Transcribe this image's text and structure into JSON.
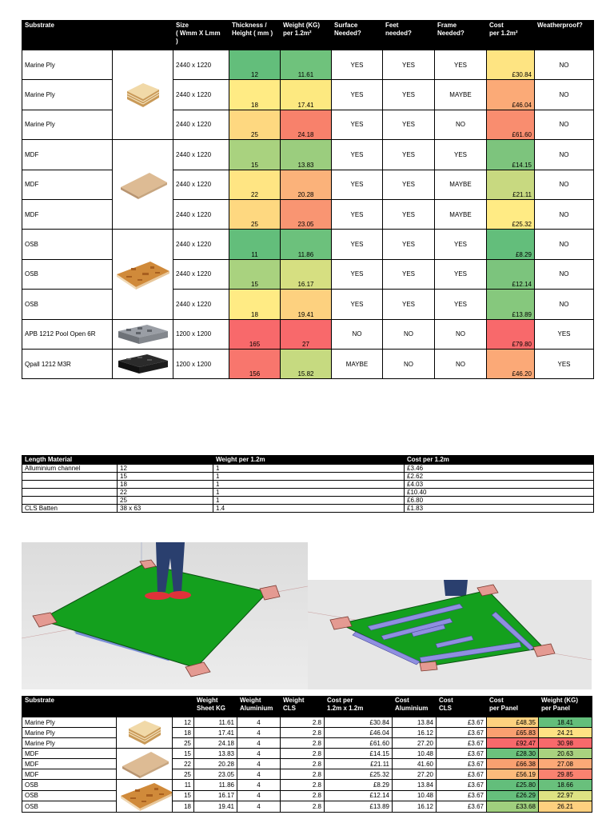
{
  "table1": {
    "header": [
      [
        "Substrate"
      ],
      [
        "Size",
        "( Wmm X Lmm",
        ")"
      ],
      [
        "Thickness /",
        "Height ( mm )"
      ],
      [
        "Weight (KG)",
        "per 1.2m²"
      ],
      [
        "Surface",
        "Needed?"
      ],
      [
        "Feet",
        "needed?"
      ],
      [
        "Frame",
        "Needed?"
      ],
      [
        "Cost",
        "per 1.2m²"
      ],
      [
        "Weatherproof?"
      ]
    ],
    "rows": [
      [
        "Marine Ply",
        "2440 x 1220",
        "12",
        "11.61",
        "YES",
        "YES",
        "YES",
        "£30.84",
        "NO"
      ],
      [
        "Marine Ply",
        "2440 x 1220",
        "18",
        "17.41",
        "YES",
        "YES",
        "MAYBE",
        "£46.04",
        "NO"
      ],
      [
        "Marine Ply",
        "2440 x 1220",
        "25",
        "24.18",
        "YES",
        "YES",
        "NO",
        "£61.60",
        "NO"
      ],
      [
        "MDF",
        "2440 x 1220",
        "15",
        "13.83",
        "YES",
        "YES",
        "YES",
        "£14.15",
        "NO"
      ],
      [
        "MDF",
        "2440 x 1220",
        "22",
        "20.28",
        "YES",
        "YES",
        "MAYBE",
        "£21.11",
        "NO"
      ],
      [
        "MDF",
        "2440 x 1220",
        "25",
        "23.05",
        "YES",
        "YES",
        "MAYBE",
        "£25.32",
        "NO"
      ],
      [
        "OSB",
        "2440 x 1220",
        "11",
        "11.86",
        "YES",
        "YES",
        "YES",
        "£8.29",
        "NO"
      ],
      [
        "OSB",
        "2440 x 1220",
        "15",
        "16.17",
        "YES",
        "YES",
        "YES",
        "£12.14",
        "NO"
      ],
      [
        "OSB",
        "2440 x 1220",
        "18",
        "19.41",
        "YES",
        "YES",
        "YES",
        "£13.89",
        "NO"
      ],
      [
        "APB 1212 Pool Open 6R",
        "1200 x 1200",
        "165",
        "27",
        "NO",
        "NO",
        "NO",
        "£79.80",
        "YES"
      ],
      [
        "Qpall 1212 M3R",
        "1200 x 1200",
        "156",
        "15.82",
        "MAYBE",
        "NO",
        "NO",
        "£46.20",
        "YES"
      ]
    ]
  },
  "table2": {
    "header": [
      [
        "Length Material"
      ],
      null,
      [
        "Weight per 1.2m"
      ],
      [
        "Cost per 1.2m"
      ]
    ],
    "rows": [
      [
        "Alluminium channel",
        "12",
        "1",
        "£3.46"
      ],
      [
        null,
        "15",
        "1",
        "£2.62"
      ],
      [
        null,
        "18",
        "1",
        "£4.03"
      ],
      [
        null,
        "22",
        "1",
        "£10.40"
      ],
      [
        null,
        "25",
        "1",
        "£6.80"
      ],
      [
        "CLS Batten",
        "38 x 63",
        "1.4",
        "£1.83"
      ]
    ]
  },
  "table3": {
    "header": [
      [
        "Substrate"
      ],
      null,
      [
        "Weight",
        "Sheet KG"
      ],
      [
        "Weight",
        "Aluminium"
      ],
      [
        "Weight",
        "CLS"
      ],
      [
        "Cost per",
        "1.2m x 1.2m"
      ],
      [
        "Cost",
        "Aluminium"
      ],
      [
        "Cost",
        "CLS"
      ],
      [
        "Cost",
        "per Panel"
      ],
      [
        "Weight (KG)",
        "per Panel"
      ]
    ],
    "rows": [
      [
        "Marine Ply",
        "12",
        "11.61",
        "4",
        "2.8",
        "£30.84",
        "13.84",
        "£3.67",
        "£48.35",
        "18.41"
      ],
      [
        "Marine Ply",
        "18",
        "17.41",
        "4",
        "2.8",
        "£46.04",
        "16.12",
        "£3.67",
        "£65.83",
        "24.21"
      ],
      [
        "Marine Ply",
        "25",
        "24.18",
        "4",
        "2.8",
        "£61.60",
        "27.20",
        "£3.67",
        "£92.47",
        "30.98"
      ],
      [
        "MDF",
        "15",
        "13.83",
        "4",
        "2.8",
        "£14.15",
        "10.48",
        "£3.67",
        "£28.30",
        "20.63"
      ],
      [
        "MDF",
        "22",
        "20.28",
        "4",
        "2.8",
        "£21.11",
        "41.60",
        "£3.67",
        "£66.38",
        "27.08"
      ],
      [
        "MDF",
        "25",
        "23.05",
        "4",
        "2.8",
        "£25.32",
        "27.20",
        "£3.67",
        "£56.19",
        "29.85"
      ],
      [
        "OSB",
        "11",
        "11.86",
        "4",
        "2.8",
        "£8.29",
        "13.84",
        "£3.67",
        "£25.80",
        "18.66"
      ],
      [
        "OSB",
        "15",
        "16.17",
        "4",
        "2.8",
        "£12.14",
        "10.48",
        "£3.67",
        "£26.29",
        "22.97"
      ],
      [
        "OSB",
        "18",
        "19.41",
        "4",
        "2.8",
        "£13.89",
        "16.12",
        "£3.67",
        "£33.68",
        "26.21"
      ]
    ]
  }
}
